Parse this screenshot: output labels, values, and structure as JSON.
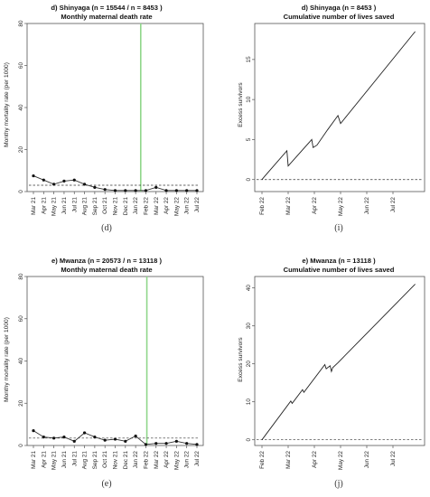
{
  "chart_data": [
    {
      "id": "d-left",
      "type": "line",
      "title": "d) Shinyaga (n = 15544  / n = 8453 )",
      "subtitle": "Monthly maternal death rate",
      "ylabel": "Monthy mortality rate (per 1000)",
      "xlabel": "",
      "caption": "(d)",
      "categories": [
        "Mar 21",
        "Apr 21",
        "May 21",
        "Jun 21",
        "Jul 21",
        "Aug 21",
        "Sep 21",
        "Oct 21",
        "Nov 21",
        "Dec 21",
        "Jan 22",
        "Feb 22",
        "Mar 22",
        "Apr 22",
        "May 22",
        "Jun 22",
        "Jul 22"
      ],
      "values": [
        7.5,
        5.5,
        3.5,
        5.0,
        5.5,
        3.5,
        2.0,
        1.0,
        0.5,
        0.5,
        0.5,
        0.5,
        2.0,
        0.5,
        0.5,
        0.5,
        0.5
      ],
      "ylim": [
        0,
        80
      ],
      "yticks": [
        0,
        20,
        40,
        60,
        80
      ],
      "reference_line": 3.0,
      "intervention_index": 10.5,
      "colors": {
        "line": "#333333",
        "intervention": "#8fd68a"
      }
    },
    {
      "id": "d-right",
      "type": "line",
      "title": "d) Shinyaga (n = 8453 )",
      "subtitle": "Cumulative number of lives saved",
      "ylabel": "Excess survivors",
      "xlabel": "",
      "caption": "(i)",
      "x_tick_labels": [
        "Feb 22",
        "Mar 22",
        "Apr 22",
        "May 22",
        "Jun 22",
        "Jul 22"
      ],
      "xlim": [
        0,
        6
      ],
      "x": [
        0.0,
        0.1,
        0.95,
        1.0,
        1.9,
        1.95,
        2.1,
        2.5,
        2.9,
        3.0,
        5.85
      ],
      "y": [
        0.0,
        0.4,
        3.6,
        1.7,
        5.0,
        4.0,
        4.3,
        6.2,
        8.0,
        7.0,
        18.5
      ],
      "ylim": [
        -1.5,
        19.5
      ],
      "yticks": [
        0,
        5,
        10,
        15
      ],
      "reference_line": 0,
      "colors": {
        "line": "#222222"
      }
    },
    {
      "id": "e-left",
      "type": "line",
      "title": "e) Mwanza (n = 20573  / n = 13118 )",
      "subtitle": "Monthly maternal death rate",
      "ylabel": "Monthy mortality rate (per 1000)",
      "xlabel": "",
      "caption": "(e)",
      "categories": [
        "Mar 21",
        "Apr 21",
        "May 21",
        "Jun 21",
        "Jul 21",
        "Aug 21",
        "Sep 21",
        "Oct 21",
        "Nov 21",
        "Dec 21",
        "Jan 22",
        "Feb 22",
        "Mar 22",
        "Apr 22",
        "May 22",
        "Jun 22",
        "Jul 22"
      ],
      "values": [
        7.0,
        4.0,
        3.5,
        4.0,
        2.0,
        6.0,
        4.0,
        2.5,
        3.0,
        2.0,
        4.5,
        0.5,
        1.0,
        1.0,
        2.0,
        1.0,
        0.5
      ],
      "ylim": [
        0,
        80
      ],
      "yticks": [
        0,
        20,
        40,
        60,
        80
      ],
      "reference_line": 3.5,
      "intervention_index": 11.1,
      "colors": {
        "line": "#333333",
        "intervention": "#8fd68a"
      }
    },
    {
      "id": "e-right",
      "type": "line",
      "title": "e) Mwanza (n = 13118 )",
      "subtitle": "Cumulative number of lives saved",
      "ylabel": "Excess survivors",
      "xlabel": "",
      "caption": "(j)",
      "x_tick_labels": [
        "Feb 22",
        "Mar 22",
        "Apr 22",
        "May 22",
        "Jun 22",
        "Jul 22"
      ],
      "xlim": [
        0,
        6
      ],
      "x": [
        0.0,
        1.1,
        1.15,
        1.55,
        1.6,
        2.4,
        2.45,
        2.6,
        2.65,
        2.7,
        2.9,
        5.85
      ],
      "y": [
        0.0,
        10.2,
        9.6,
        13.2,
        12.5,
        19.8,
        18.7,
        19.5,
        18.0,
        19.0,
        20.3,
        41.0
      ],
      "ylim": [
        -1.5,
        43
      ],
      "yticks": [
        0,
        10,
        20,
        30,
        40
      ],
      "reference_line": 0,
      "colors": {
        "line": "#222222"
      }
    }
  ]
}
